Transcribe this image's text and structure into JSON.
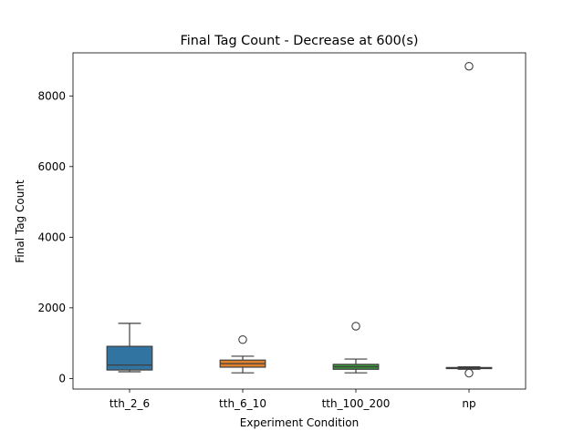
{
  "chart_data": {
    "type": "box",
    "title": "Final Tag Count - Decrease at 600(s)",
    "xlabel": "Experiment Condition",
    "ylabel": "Final Tag Count",
    "ylim": [
      -300,
      9220
    ],
    "yticks": [
      0,
      2000,
      4000,
      6000,
      8000
    ],
    "grid": false,
    "categories": [
      "tth_2_6",
      "tth_6_10",
      "tth_100_200",
      "np"
    ],
    "boxes": [
      {
        "category": "tth_2_6",
        "color": "#3274a1",
        "whisker_low": 190,
        "q1": 240,
        "median": 380,
        "q3": 910,
        "whisker_high": 1560,
        "outliers": []
      },
      {
        "category": "tth_6_10",
        "color": "#e1812c",
        "whisker_low": 160,
        "q1": 320,
        "median": 420,
        "q3": 520,
        "whisker_high": 630,
        "outliers": [
          1100
        ]
      },
      {
        "category": "tth_100_200",
        "color": "#3a923a",
        "whisker_low": 160,
        "q1": 260,
        "median": 330,
        "q3": 400,
        "whisker_high": 550,
        "outliers": [
          1480
        ]
      },
      {
        "category": "np",
        "color": "#c03d3e",
        "whisker_low": 260,
        "q1": 280,
        "median": 300,
        "q3": 310,
        "whisker_high": 330,
        "outliers": [
          8840,
          150
        ]
      }
    ]
  }
}
